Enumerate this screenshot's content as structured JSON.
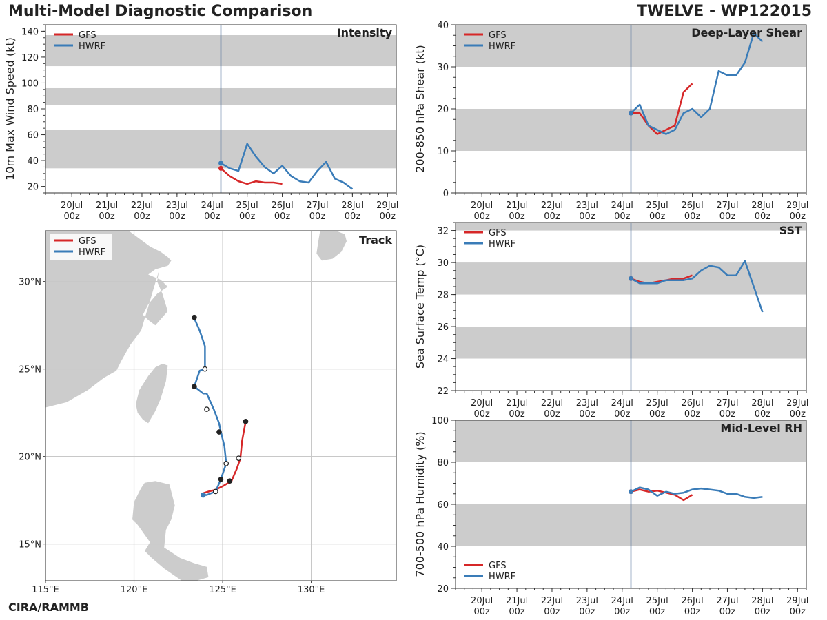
{
  "header": {
    "title": "Multi-Model Diagnostic Comparison",
    "storm": "TWELVE - WP122015",
    "credit": "CIRA/RAMMB"
  },
  "colors": {
    "gfs": "#d62728",
    "hwrf": "#3a7cb8",
    "band": "#cccccc",
    "init_line": "#4a6f97"
  },
  "chart_data": [
    {
      "id": "intensity",
      "type": "line",
      "title": "Intensity",
      "ylabel": "10m Max Wind Speed (kt)",
      "xlabel": "",
      "ylim": [
        15,
        145
      ],
      "yticks": [
        20,
        40,
        60,
        80,
        100,
        120,
        140
      ],
      "x_range": [
        19.25,
        29.25
      ],
      "x_ticks": [
        20,
        21,
        22,
        23,
        24,
        25,
        26,
        27,
        28,
        29
      ],
      "x_tick_labels": [
        "20Jul\n00z",
        "21Jul\n00z",
        "22Jul\n00z",
        "23Jul\n00z",
        "24Jul\n00z",
        "25Jul\n00z",
        "26Jul\n00z",
        "27Jul\n00z",
        "28Jul\n00z",
        "29Jul\n00z"
      ],
      "init_time": 24.25,
      "bands": [
        [
          34,
          64
        ],
        [
          83,
          96
        ],
        [
          113,
          137
        ]
      ],
      "legend": [
        "GFS",
        "HWRF"
      ],
      "legend_loc": "upper-left",
      "series": [
        {
          "name": "GFS",
          "x": [
            24.25,
            24.5,
            24.75,
            25.0,
            25.25,
            25.5,
            25.75,
            26.0
          ],
          "y": [
            34,
            28,
            24,
            22,
            24,
            23,
            23,
            22
          ]
        },
        {
          "name": "HWRF",
          "x": [
            24.25,
            24.5,
            24.75,
            25.0,
            25.25,
            25.5,
            25.75,
            26.0,
            26.25,
            26.5,
            26.75,
            27.0,
            27.25,
            27.5,
            27.75,
            28.0
          ],
          "y": [
            38,
            34,
            32,
            53,
            43,
            35,
            30,
            36,
            28,
            24,
            23,
            32,
            39,
            26,
            23,
            18
          ]
        }
      ]
    },
    {
      "id": "shear",
      "type": "line",
      "title": "Deep-Layer Shear",
      "ylabel": "200-850 hPa Shear (kt)",
      "xlabel": "",
      "ylim": [
        0,
        40
      ],
      "yticks": [
        0,
        10,
        20,
        30,
        40
      ],
      "x_range": [
        19.25,
        29.25
      ],
      "x_ticks": [
        20,
        21,
        22,
        23,
        24,
        25,
        26,
        27,
        28,
        29
      ],
      "x_tick_labels": [
        "20Jul\n00z",
        "21Jul\n00z",
        "22Jul\n00z",
        "23Jul\n00z",
        "24Jul\n00z",
        "25Jul\n00z",
        "26Jul\n00z",
        "27Jul\n00z",
        "28Jul\n00z",
        "29Jul\n00z"
      ],
      "init_time": 24.25,
      "bands": [
        [
          10,
          20
        ],
        [
          30,
          40
        ]
      ],
      "legend": [
        "GFS",
        "HWRF"
      ],
      "legend_loc": "upper-left",
      "series": [
        {
          "name": "GFS",
          "x": [
            24.25,
            24.5,
            24.75,
            25.0,
            25.25,
            25.5,
            25.75,
            26.0
          ],
          "y": [
            19,
            19,
            16,
            14,
            15,
            16,
            24,
            26
          ]
        },
        {
          "name": "HWRF",
          "x": [
            24.25,
            24.5,
            24.75,
            25.0,
            25.25,
            25.5,
            25.75,
            26.0,
            26.25,
            26.5,
            26.75,
            27.0,
            27.25,
            27.5,
            27.75,
            28.0
          ],
          "y": [
            19,
            21,
            16,
            15,
            14,
            15,
            19,
            20,
            18,
            20,
            29,
            28,
            28,
            31,
            38,
            36
          ]
        }
      ]
    },
    {
      "id": "sst",
      "type": "line",
      "title": "SST",
      "ylabel": "Sea Surface Temp (°C)",
      "xlabel": "",
      "ylim": [
        22,
        32.5
      ],
      "yticks": [
        22,
        24,
        26,
        28,
        30,
        32
      ],
      "x_range": [
        19.25,
        29.25
      ],
      "x_ticks": [
        20,
        21,
        22,
        23,
        24,
        25,
        26,
        27,
        28,
        29
      ],
      "x_tick_labels": [
        "20Jul\n00z",
        "21Jul\n00z",
        "22Jul\n00z",
        "23Jul\n00z",
        "24Jul\n00z",
        "25Jul\n00z",
        "26Jul\n00z",
        "27Jul\n00z",
        "28Jul\n00z",
        "29Jul\n00z"
      ],
      "init_time": 24.25,
      "bands": [
        [
          24,
          26
        ],
        [
          28,
          30
        ],
        [
          32,
          32.5
        ]
      ],
      "legend": [
        "GFS",
        "HWRF"
      ],
      "legend_loc": "upper-left",
      "series": [
        {
          "name": "GFS",
          "x": [
            24.25,
            24.5,
            24.75,
            25.0,
            25.25,
            25.5,
            25.75,
            26.0
          ],
          "y": [
            29.0,
            28.8,
            28.7,
            28.8,
            28.9,
            29.0,
            29.0,
            29.2
          ]
        },
        {
          "name": "HWRF",
          "x": [
            24.25,
            24.5,
            24.75,
            25.0,
            25.25,
            25.5,
            25.75,
            26.0,
            26.25,
            26.5,
            26.75,
            27.0,
            27.25,
            27.5,
            27.75,
            28.0
          ],
          "y": [
            29.0,
            28.7,
            28.7,
            28.7,
            28.9,
            28.9,
            28.9,
            29.0,
            29.5,
            29.8,
            29.7,
            29.2,
            29.2,
            30.1,
            28.5,
            26.9
          ]
        }
      ]
    },
    {
      "id": "rh",
      "type": "line",
      "title": "Mid-Level RH",
      "ylabel": "700-500 hPa Humidity (%)",
      "xlabel": "",
      "ylim": [
        20,
        100
      ],
      "yticks": [
        20,
        40,
        60,
        80,
        100
      ],
      "x_range": [
        19.25,
        29.25
      ],
      "x_ticks": [
        20,
        21,
        22,
        23,
        24,
        25,
        26,
        27,
        28,
        29
      ],
      "x_tick_labels": [
        "20Jul\n00z",
        "21Jul\n00z",
        "22Jul\n00z",
        "23Jul\n00z",
        "24Jul\n00z",
        "25Jul\n00z",
        "26Jul\n00z",
        "27Jul\n00z",
        "28Jul\n00z",
        "29Jul\n00z"
      ],
      "init_time": 24.25,
      "bands": [
        [
          40,
          60
        ],
        [
          80,
          100
        ]
      ],
      "legend": [
        "GFS",
        "HWRF"
      ],
      "legend_loc": "lower-left",
      "series": [
        {
          "name": "GFS",
          "x": [
            24.25,
            24.5,
            24.75,
            25.0,
            25.25,
            25.5,
            25.75,
            26.0
          ],
          "y": [
            66,
            67,
            66,
            66.5,
            65.5,
            64.5,
            62,
            64.5
          ]
        },
        {
          "name": "HWRF",
          "x": [
            24.25,
            24.5,
            24.75,
            25.0,
            25.25,
            25.5,
            25.75,
            26.0,
            26.25,
            26.5,
            26.75,
            27.0,
            27.25,
            27.5,
            27.75,
            28.0
          ],
          "y": [
            66,
            68,
            67,
            64,
            66,
            65,
            65.5,
            67,
            67.5,
            67,
            66.5,
            65,
            65,
            63.5,
            63,
            63.5
          ]
        }
      ]
    },
    {
      "id": "track",
      "type": "scatter",
      "title": "Track",
      "xlabel": "",
      "ylabel": "",
      "xlim": [
        115,
        134.8
      ],
      "ylim": [
        12.9,
        32.9
      ],
      "x_ticks": [
        115,
        120,
        125,
        130
      ],
      "x_tick_labels": [
        "115°E",
        "120°E",
        "125°E",
        "130°E"
      ],
      "y_ticks": [
        15,
        20,
        25,
        30
      ],
      "y_tick_labels": [
        "15°N",
        "20°N",
        "25°N",
        "30°N"
      ],
      "legend": [
        "GFS",
        "HWRF"
      ],
      "legend_loc": "upper-left",
      "series": [
        {
          "name": "GFS",
          "lon": [
            123.9,
            124.2,
            124.6,
            125.0,
            125.5,
            125.8,
            126.0,
            126.1,
            126.3
          ],
          "lat": [
            17.9,
            18.0,
            18.1,
            18.3,
            18.6,
            19.3,
            19.9,
            20.9,
            22.0
          ]
        },
        {
          "name": "HWRF",
          "lon": [
            123.9,
            124.1,
            124.6,
            124.9,
            125.2,
            125.1,
            124.9,
            124.8,
            124.5,
            124.1,
            123.9,
            123.4,
            123.7,
            124.0,
            124.0,
            123.7,
            123.4
          ],
          "lat": [
            17.8,
            17.8,
            18.0,
            18.7,
            19.6,
            20.6,
            21.4,
            21.9,
            22.7,
            23.6,
            23.6,
            24.0,
            24.9,
            25.0,
            26.3,
            27.2,
            27.9
          ]
        }
      ],
      "markers": [
        {
          "lon": 123.4,
          "lat": 27.95,
          "fill": "black"
        },
        {
          "lon": 124.0,
          "lat": 25.0,
          "fill": "white"
        },
        {
          "lon": 123.4,
          "lat": 24.0,
          "fill": "black"
        },
        {
          "lon": 124.1,
          "lat": 22.7,
          "fill": "white"
        },
        {
          "lon": 124.8,
          "lat": 21.4,
          "fill": "black"
        },
        {
          "lon": 126.3,
          "lat": 22.0,
          "fill": "black"
        },
        {
          "lon": 125.9,
          "lat": 19.9,
          "fill": "white"
        },
        {
          "lon": 125.2,
          "lat": 19.6,
          "fill": "white"
        },
        {
          "lon": 124.9,
          "lat": 18.7,
          "fill": "black"
        },
        {
          "lon": 125.4,
          "lat": 18.6,
          "fill": "black"
        },
        {
          "lon": 124.6,
          "lat": 18.0,
          "fill": "white"
        },
        {
          "lon": 123.9,
          "lat": 17.8,
          "fill": "blue"
        }
      ],
      "land": [
        {
          "name": "china-mainland",
          "lon": [
            115.0,
            116.4,
            117.3,
            118.0,
            118.6,
            119.2,
            119.7,
            120.1,
            120.9,
            121.5,
            121.9,
            122.1,
            121.9,
            121.2,
            120.8,
            121.5,
            121.9,
            121.3,
            120.8,
            120.5,
            120.8,
            121.2,
            121.9,
            121.6,
            121.3,
            121.4,
            120.4,
            119.8,
            119.3,
            119.0,
            118.3,
            117.4,
            116.2,
            115.0
          ],
          "lat": [
            32.9,
            32.9,
            32.9,
            32.9,
            32.9,
            32.9,
            32.9,
            32.6,
            32.0,
            31.7,
            31.4,
            31.2,
            30.9,
            30.7,
            30.4,
            30.1,
            29.7,
            29.3,
            28.7,
            28.1,
            27.8,
            27.5,
            28.3,
            29.3,
            30.0,
            30.6,
            27.2,
            26.4,
            25.5,
            24.9,
            24.5,
            23.8,
            23.1,
            22.8
          ]
        },
        {
          "name": "taiwan",
          "lon": [
            121.9,
            121.6,
            121.2,
            120.8,
            120.3,
            120.1,
            120.2,
            120.5,
            120.8,
            121.2,
            121.5,
            121.8,
            121.9
          ],
          "lat": [
            25.2,
            25.3,
            25.1,
            24.6,
            23.8,
            23.0,
            22.5,
            22.1,
            21.9,
            22.6,
            23.3,
            24.3,
            25.2
          ]
        },
        {
          "name": "luzon",
          "lon": [
            120.6,
            121.2,
            122.0,
            122.3,
            122.1,
            121.8,
            121.7,
            122.6,
            123.4,
            124.1,
            124.2,
            123.5,
            122.7,
            121.7,
            121.0,
            120.6,
            120.9,
            120.2,
            119.9,
            120.0,
            120.4,
            120.6
          ],
          "lat": [
            18.5,
            18.6,
            18.4,
            17.2,
            16.4,
            15.8,
            14.8,
            14.2,
            13.9,
            13.7,
            13.1,
            12.9,
            12.9,
            13.6,
            14.2,
            14.6,
            15.1,
            16.1,
            16.4,
            17.4,
            18.2,
            18.5
          ]
        },
        {
          "name": "japan-kyushu",
          "lon": [
            130.5,
            131.4,
            131.9,
            132.0,
            131.7,
            131.2,
            130.6,
            130.3,
            130.4,
            130.5
          ],
          "lat": [
            32.9,
            32.9,
            32.7,
            32.3,
            31.7,
            31.3,
            31.2,
            31.6,
            32.3,
            32.9
          ]
        }
      ]
    }
  ]
}
